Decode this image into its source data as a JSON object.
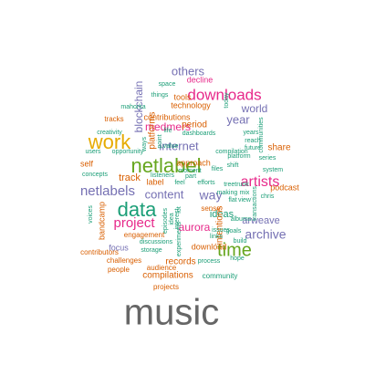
{
  "palette": {
    "purple": "#7570b3",
    "green": "#1b9e77",
    "orange": "#d95f02",
    "magenta": "#e7298a",
    "lime": "#66a61e",
    "mustard": "#e6ab02",
    "brown": "#a6761d",
    "gray": "#666666"
  },
  "words": [
    {
      "text": "music",
      "color": "gray"
    },
    {
      "text": "netlabel",
      "color": "lime"
    },
    {
      "text": "work",
      "color": "mustard"
    },
    {
      "text": "data",
      "color": "green"
    },
    {
      "text": "time",
      "color": "lime"
    },
    {
      "text": "downloads",
      "color": "magenta"
    },
    {
      "text": "artists",
      "color": "magenta"
    },
    {
      "text": "netlabels",
      "color": "purple"
    },
    {
      "text": "project",
      "color": "magenta"
    },
    {
      "text": "archive",
      "color": "purple"
    },
    {
      "text": "year",
      "color": "purple"
    },
    {
      "text": "others",
      "color": "purple"
    },
    {
      "text": "internet",
      "color": "purple"
    },
    {
      "text": "way",
      "color": "purple"
    },
    {
      "text": "content",
      "color": "purple"
    },
    {
      "text": "world",
      "color": "purple"
    },
    {
      "text": "blockchain",
      "color": "purple"
    },
    {
      "text": "medmers",
      "color": "magenta"
    },
    {
      "text": "ideas",
      "color": "green"
    },
    {
      "text": "aurora",
      "color": "magenta"
    },
    {
      "text": "arweave",
      "color": "purple"
    },
    {
      "text": "share",
      "color": "orange"
    },
    {
      "text": "compilations",
      "color": "orange"
    },
    {
      "text": "records",
      "color": "orange"
    },
    {
      "text": "download",
      "color": "orange"
    },
    {
      "text": "focus",
      "color": "purple"
    },
    {
      "text": "self",
      "color": "orange"
    },
    {
      "text": "track",
      "color": "orange"
    },
    {
      "text": "intentions",
      "color": "orange"
    },
    {
      "text": "bandcamp",
      "color": "orange"
    },
    {
      "text": "platforms",
      "color": "orange"
    },
    {
      "text": "period",
      "color": "orange"
    },
    {
      "text": "podcast",
      "color": "orange"
    },
    {
      "text": "label",
      "color": "orange"
    },
    {
      "text": "approach",
      "color": "orange"
    },
    {
      "text": "contributions",
      "color": "orange"
    },
    {
      "text": "technology",
      "color": "orange"
    },
    {
      "text": "tools",
      "color": "orange"
    },
    {
      "text": "decline",
      "color": "magenta"
    },
    {
      "text": "tracks",
      "color": "orange"
    },
    {
      "text": "projects",
      "color": "orange"
    },
    {
      "text": "people",
      "color": "orange"
    },
    {
      "text": "challenges",
      "color": "orange"
    },
    {
      "text": "contributors",
      "color": "orange"
    },
    {
      "text": "engagement",
      "color": "orange"
    },
    {
      "text": "sense",
      "color": "orange"
    },
    {
      "text": "community",
      "color": "green"
    },
    {
      "text": "audience",
      "color": "orange"
    },
    {
      "text": "process",
      "color": "green"
    },
    {
      "text": "storage",
      "color": "green"
    },
    {
      "text": "discussions",
      "color": "green"
    },
    {
      "text": "compilation",
      "color": "green"
    },
    {
      "text": "goals",
      "color": "green"
    },
    {
      "text": "links",
      "color": "green"
    },
    {
      "text": "issues",
      "color": "green"
    },
    {
      "text": "albums",
      "color": "green"
    },
    {
      "text": "hope",
      "color": "green"
    },
    {
      "text": "build",
      "color": "green"
    },
    {
      "text": "view",
      "color": "green"
    },
    {
      "text": "flat",
      "color": "green"
    },
    {
      "text": "making",
      "color": "green"
    },
    {
      "text": "mix",
      "color": "green"
    },
    {
      "text": "treetrunk",
      "color": "green"
    },
    {
      "text": "efforts",
      "color": "green"
    },
    {
      "text": "part",
      "color": "green"
    },
    {
      "text": "files",
      "color": "green"
    },
    {
      "text": "moment",
      "color": "green"
    },
    {
      "text": "listeners",
      "color": "green"
    },
    {
      "text": "feel",
      "color": "green"
    },
    {
      "text": "value",
      "color": "green"
    },
    {
      "text": "life",
      "color": "green"
    },
    {
      "text": "dashboards",
      "color": "green"
    },
    {
      "text": "mahorka",
      "color": "green"
    },
    {
      "text": "things",
      "color": "green"
    },
    {
      "text": "space",
      "color": "green"
    },
    {
      "text": "creativity",
      "color": "green"
    },
    {
      "text": "users",
      "color": "green"
    },
    {
      "text": "opportunity",
      "color": "green"
    },
    {
      "text": "concepts",
      "color": "green"
    },
    {
      "text": "voices",
      "color": "green"
    },
    {
      "text": "episodes",
      "color": "green"
    },
    {
      "text": "idea",
      "color": "green"
    },
    {
      "text": "experiments",
      "color": "green"
    },
    {
      "text": "lot",
      "color": "green"
    },
    {
      "text": "interest",
      "color": "green"
    },
    {
      "text": "point",
      "color": "green"
    },
    {
      "text": "ways",
      "color": "green"
    },
    {
      "text": "platform",
      "color": "green"
    },
    {
      "text": "shift",
      "color": "green"
    },
    {
      "text": "years",
      "color": "green"
    },
    {
      "text": "reach",
      "color": "green"
    },
    {
      "text": "future",
      "color": "green"
    },
    {
      "text": "chris",
      "color": "green"
    },
    {
      "text": "series",
      "color": "green"
    },
    {
      "text": "system",
      "color": "green"
    },
    {
      "text": "communities",
      "color": "green"
    },
    {
      "text": "today",
      "color": "green"
    },
    {
      "text": "transactions",
      "color": "green"
    }
  ]
}
